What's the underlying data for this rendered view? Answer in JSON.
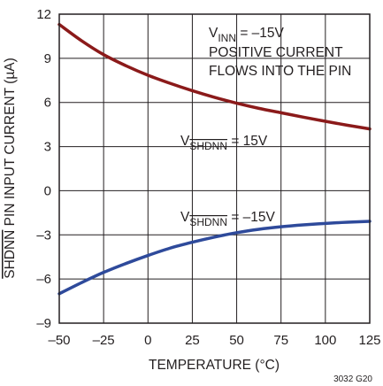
{
  "chart_data": {
    "type": "line",
    "xlabel": "TEMPERATURE (°C)",
    "ylabel": "SHDNN PIN INPUT CURRENT (µA)",
    "ylabel_overbar": "SHDNN",
    "ylabel_rest": " PIN INPUT CURRENT (µA)",
    "xlim": [
      -50,
      125
    ],
    "ylim": [
      -9,
      12
    ],
    "xticks": [
      -50,
      -25,
      0,
      25,
      50,
      75,
      100,
      125
    ],
    "yticks": [
      -9,
      -6,
      -3,
      0,
      3,
      6,
      9,
      12
    ],
    "xtick_labels": [
      "–50",
      "–25",
      "0",
      "25",
      "50",
      "75",
      "100",
      "125"
    ],
    "ytick_labels": [
      "–9",
      "–6",
      "–3",
      "0",
      "3",
      "6",
      "9",
      "12"
    ],
    "grid": true,
    "series": [
      {
        "color": "#8b1a1a",
        "x": [
          -50,
          -37.5,
          -25,
          -12.5,
          0,
          12.5,
          25,
          37.5,
          50,
          62.5,
          75,
          87.5,
          100,
          112.5,
          125
        ],
        "y": [
          11.3,
          10.2,
          9.25,
          8.5,
          7.85,
          7.3,
          6.8,
          6.35,
          5.95,
          5.6,
          5.3,
          5.0,
          4.72,
          4.45,
          4.2
        ]
      },
      {
        "color": "#2e4a9b",
        "x": [
          -50,
          -37.5,
          -25,
          -12.5,
          0,
          12.5,
          25,
          37.5,
          50,
          62.5,
          75,
          87.5,
          100,
          112.5,
          125
        ],
        "y": [
          -7.0,
          -6.25,
          -5.55,
          -4.95,
          -4.4,
          -3.9,
          -3.5,
          -3.15,
          -2.85,
          -2.62,
          -2.45,
          -2.32,
          -2.22,
          -2.14,
          -2.08
        ]
      }
    ],
    "annotations": {
      "vinn_main": "V",
      "vinn_sub": "INN",
      "vinn_rest": " = –15V",
      "positive_line1": "POSITIVE CURRENT",
      "positive_line2": "FLOWS INTO THE PIN",
      "upper_main": "V",
      "upper_sub": "SHDNN",
      "upper_rest": " = 15V",
      "lower_main": "V",
      "lower_sub": "SHDNN",
      "lower_rest": " = –15V"
    },
    "figure_code": "3032 G20"
  }
}
